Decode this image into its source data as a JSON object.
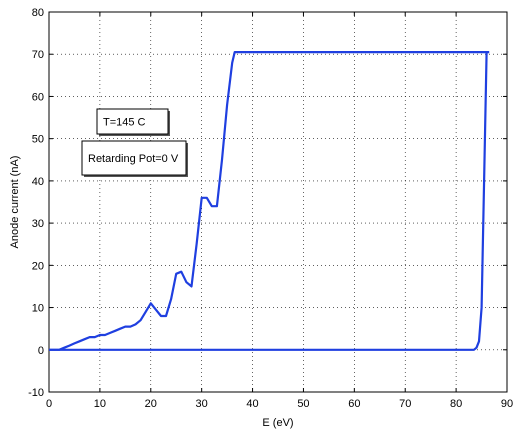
{
  "chart_data": {
    "type": "line",
    "xlabel": "E (eV)",
    "ylabel": "Anode current (nA)",
    "xlim": [
      0,
      90
    ],
    "ylim": [
      -10,
      80
    ],
    "xticks": [
      0,
      10,
      20,
      30,
      40,
      50,
      60,
      70,
      80,
      90
    ],
    "yticks": [
      -10,
      0,
      10,
      20,
      30,
      40,
      50,
      60,
      70,
      80
    ],
    "grid": true,
    "legend": "none",
    "line_color": "#1f3fe0",
    "annotations": [
      {
        "text": "T=145 C"
      },
      {
        "text": "Retarding Pot=0 V"
      }
    ],
    "series": [
      {
        "x": [
          0,
          1,
          2,
          3,
          4,
          5,
          6,
          7,
          8,
          9,
          10,
          11,
          12,
          13,
          14,
          15,
          16,
          17,
          18,
          19,
          20,
          21,
          22,
          23,
          24,
          25,
          26,
          27,
          28,
          29,
          30,
          31,
          32,
          33,
          34,
          35,
          36,
          36.5,
          37,
          40,
          50,
          60,
          70,
          80,
          86,
          86.5
        ],
        "y": [
          0,
          0,
          0,
          0.5,
          1,
          1.5,
          2,
          2.5,
          3,
          3,
          3.5,
          3.5,
          4,
          4.5,
          5,
          5.5,
          5.5,
          6,
          7,
          9,
          11,
          9.5,
          8,
          8,
          12,
          18,
          18.5,
          16,
          15,
          25,
          36,
          36,
          34,
          34,
          45,
          58,
          68,
          70.5,
          70.5,
          70.5,
          70.5,
          70.5,
          70.5,
          70.5,
          70.5,
          70.5
        ]
      },
      {
        "x": [
          86,
          85.5,
          85,
          84.5,
          84,
          83.5,
          80,
          70,
          60,
          50,
          40,
          30,
          20,
          10,
          0
        ],
        "y": [
          70.5,
          40,
          10,
          2,
          0.5,
          0,
          0,
          0,
          0,
          0,
          0,
          0,
          0,
          0,
          0
        ]
      }
    ]
  }
}
